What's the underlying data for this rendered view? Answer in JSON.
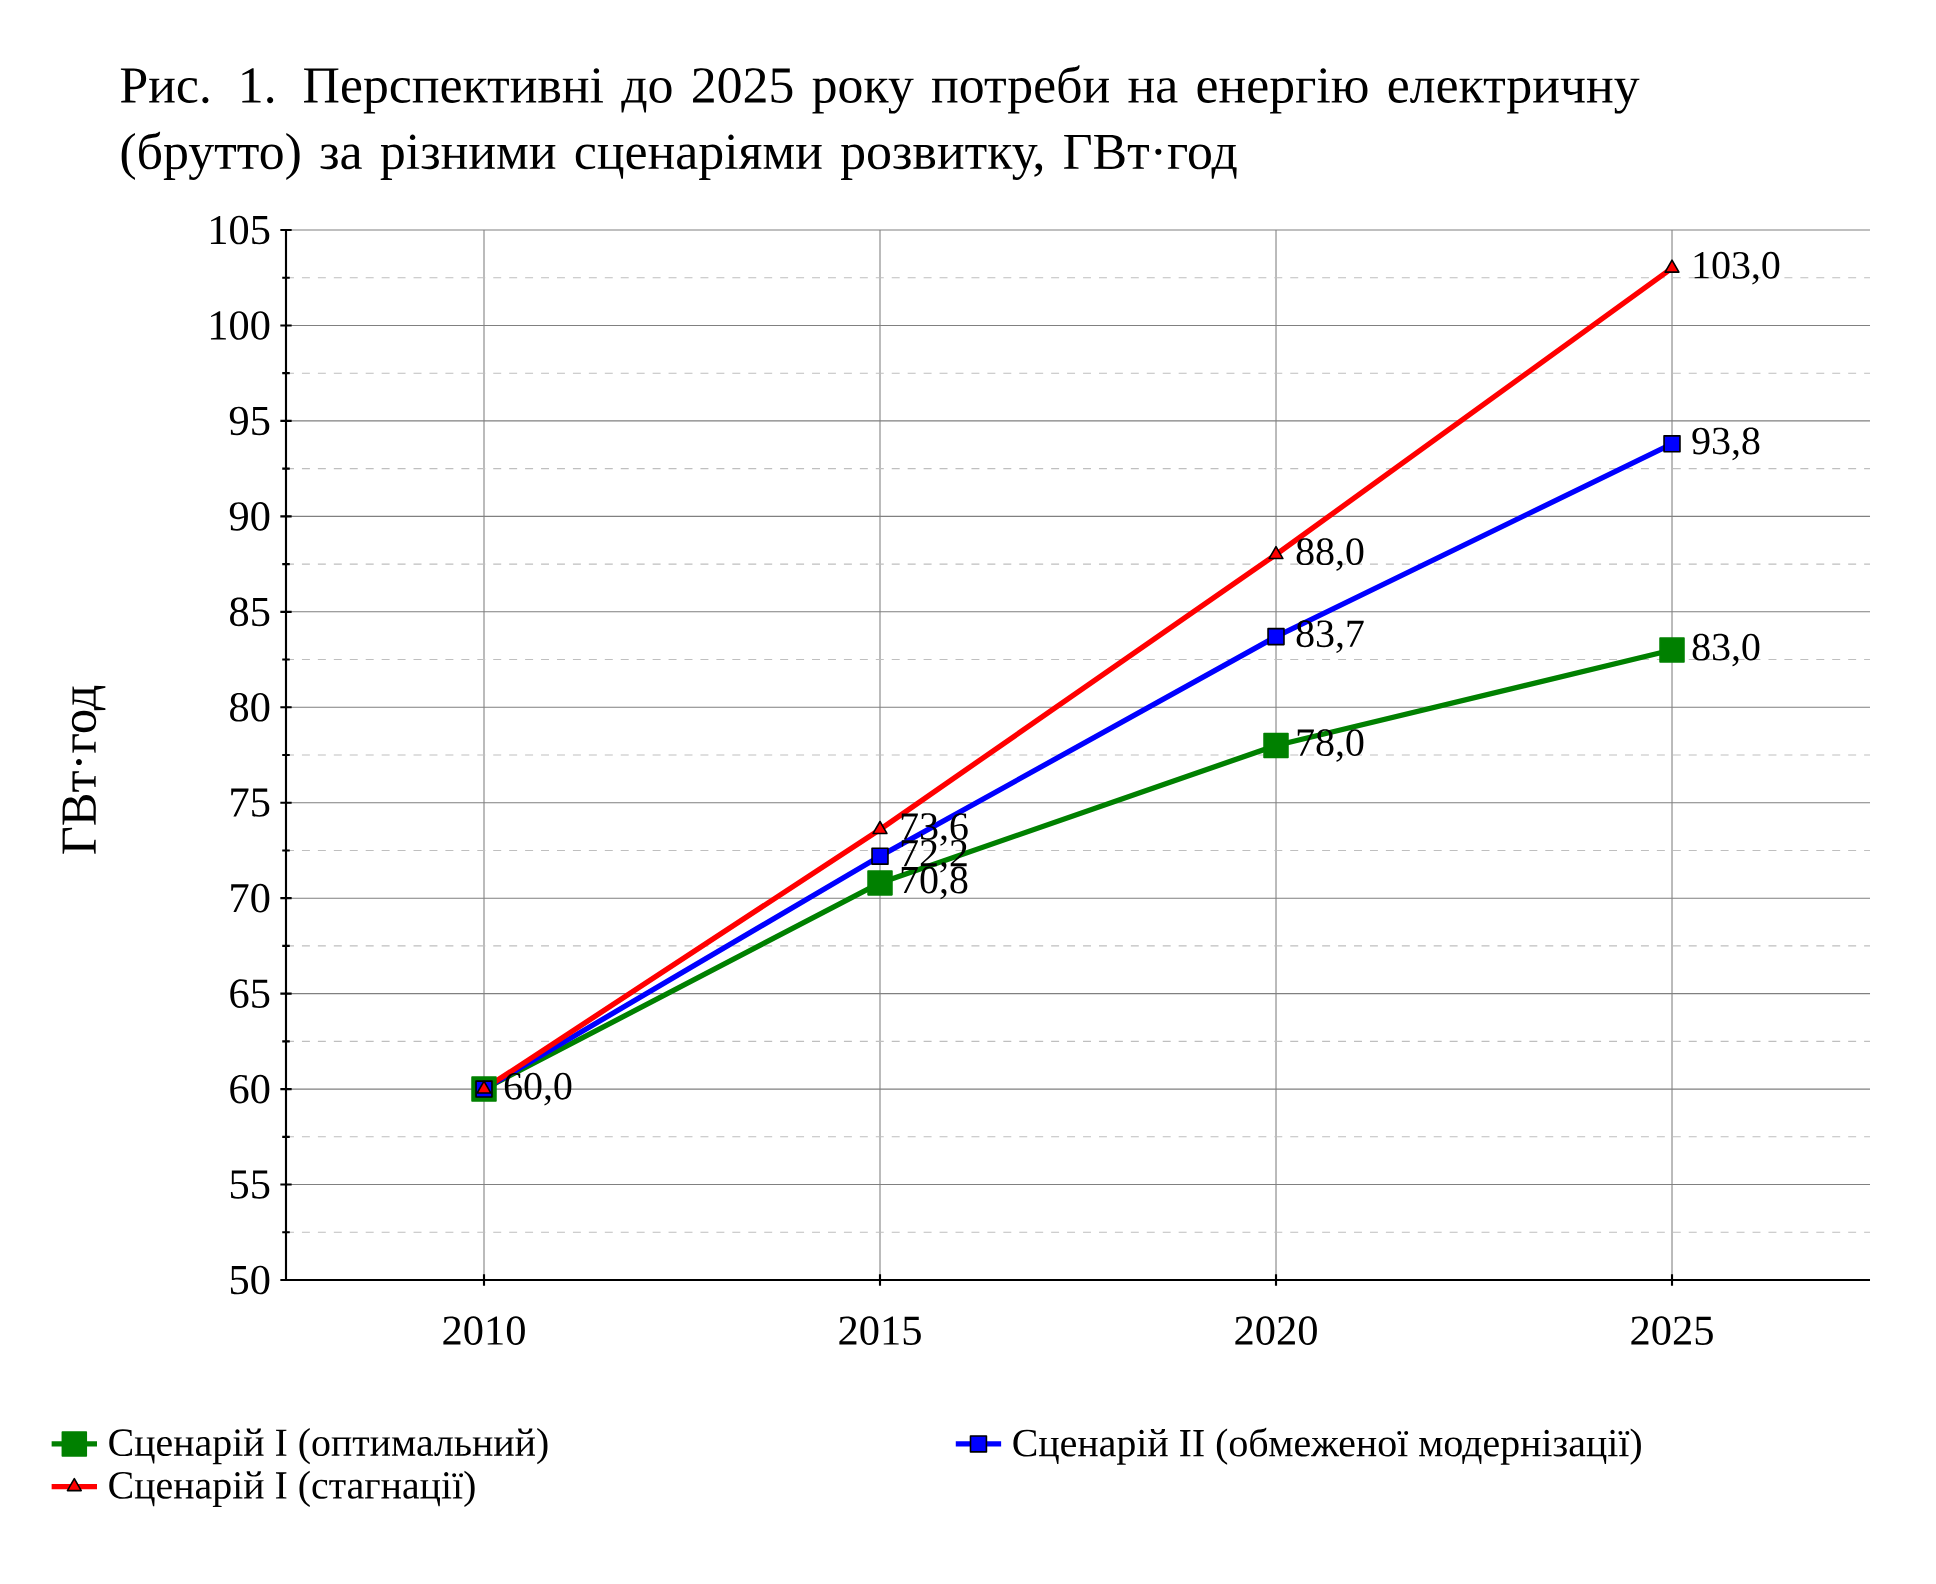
{
  "chart_data": {
    "type": "line",
    "title": "Рис. 1. Перспективні до 2025 року потреби на енергію електричну (брутто) за різними сценаріями розвитку, ГВт·год",
    "ylabel": "ГВт·год",
    "x": [
      2010,
      2015,
      2020,
      2025
    ],
    "xlim": [
      2007.5,
      2027.5
    ],
    "xticks": [
      2010,
      2015,
      2020,
      2025
    ],
    "ylim": [
      50,
      105
    ],
    "yticks": [
      50,
      55,
      60,
      65,
      70,
      75,
      80,
      85,
      90,
      95,
      100,
      105
    ],
    "grid": true,
    "legend": "bottom",
    "line_style": "solid",
    "series": [
      {
        "name": "Сценарій I (оптимальний)",
        "color": "#008000",
        "marker": "square",
        "values": [
          60.0,
          70.8,
          78.0,
          83.0
        ],
        "value_labels": [
          null,
          "70,8",
          "78,0",
          "83,0"
        ]
      },
      {
        "name": "Сценарій II (обмеженої модернізації)",
        "color": "#0000ff",
        "marker": "square",
        "values": [
          60.0,
          72.2,
          83.7,
          93.8
        ],
        "value_labels": [
          null,
          "72,2",
          "83,7",
          "93,8"
        ]
      },
      {
        "name": "Сценарій I (стагнації)",
        "color": "#ff0000",
        "marker": "triangle",
        "values": [
          60.0,
          73.6,
          88.0,
          103.0
        ],
        "value_labels": [
          "60,0",
          "73,6",
          "88,0",
          "103,0"
        ]
      }
    ]
  }
}
